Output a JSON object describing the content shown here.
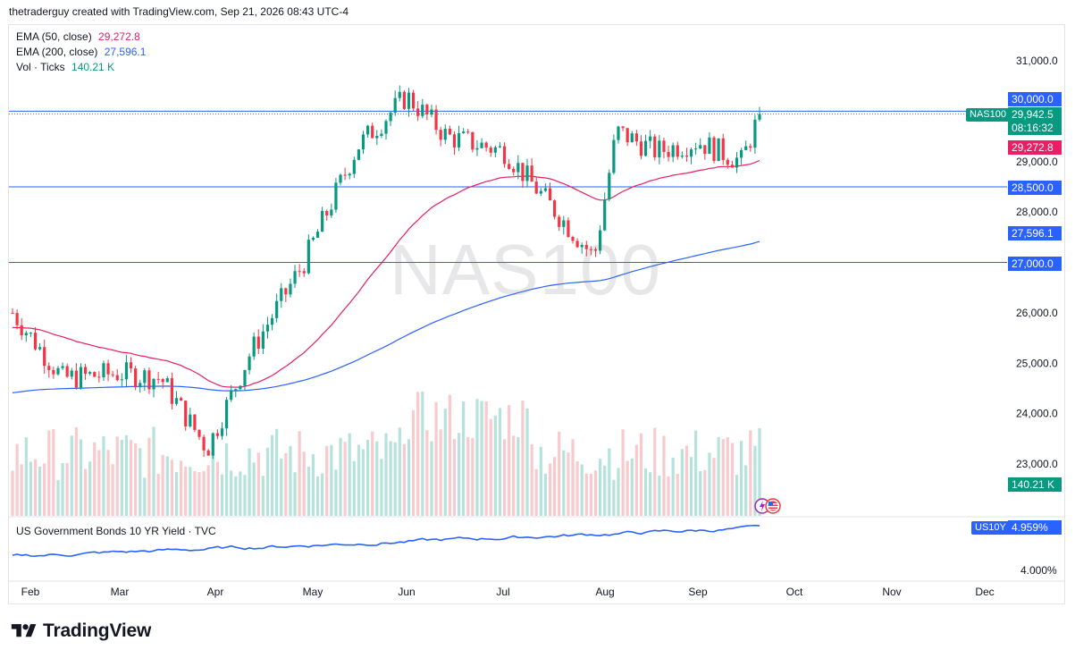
{
  "header": {
    "text": "thetraderguy created with TradingView.com, Sep 21, 2026 08:43 UTC-4"
  },
  "watermark": "NAS100",
  "legend": {
    "ema50": {
      "label": "EMA (50, close)",
      "value": "29,272.8",
      "color": "#e91e63"
    },
    "ema200": {
      "label": "EMA (200, close)",
      "value": "27,596.1",
      "color": "#2962ff"
    },
    "vol": {
      "label": "Vol · Ticks",
      "value": "140.21 K",
      "color": "#089981"
    }
  },
  "price_tags": {
    "line30000": {
      "text": "30,000.0",
      "color": "#2962ff"
    },
    "symbol": {
      "text": "NAS100",
      "color": "#089981"
    },
    "last": {
      "text": "29,942.5",
      "color": "#089981"
    },
    "countdown": {
      "text": "08:16:32",
      "color": "#089981"
    },
    "ema50": {
      "text": "29,272.8",
      "color": "#e91e63"
    },
    "line28500": {
      "text": "28,500.0",
      "color": "#2962ff"
    },
    "ema200": {
      "text": "27,596.1",
      "color": "#2962ff"
    },
    "line27000": {
      "text": "27,000.0",
      "color": "#2962ff"
    },
    "volume": {
      "text": "140.21 K",
      "color": "#089981"
    },
    "us10y_symbol": {
      "text": "US10Y",
      "color": "#2962ff"
    },
    "us10y_value": {
      "text": "4.959%",
      "color": "#2962ff"
    }
  },
  "pane2": {
    "title": "US Government Bonds 10 YR Yield · TVC",
    "tick": "4.000%"
  },
  "footer": {
    "brand": "TradingView"
  },
  "chart_data": {
    "type": "candlestick",
    "symbol": "NAS100",
    "price_axis": {
      "ticks": [
        "31,000.0",
        "29,000.0",
        "28,000.0",
        "26,000.0",
        "25,000.0",
        "24,000.0",
        "23,000.0"
      ],
      "range": [
        22000,
        31400
      ]
    },
    "time_axis": {
      "ticks": [
        "Feb",
        "Mar",
        "Apr",
        "May",
        "Jun",
        "Jul",
        "Aug",
        "Sep",
        "Oct",
        "Nov",
        "Dec"
      ]
    },
    "horizontal_lines": [
      30000,
      28500,
      27000
    ],
    "last_price": 29942.5,
    "close_series": {
      "months": [
        "Feb",
        "Mar",
        "Apr",
        "May",
        "Jun",
        "Jul",
        "Aug",
        "Sep"
      ],
      "closes_keypoints": [
        [
          "Feb",
          26000
        ],
        [
          "Feb-mid",
          24700
        ],
        [
          "Mar",
          24800
        ],
        [
          "Mar-mid",
          24700
        ],
        [
          "Apr",
          23300
        ],
        [
          "Apr-mid",
          25200
        ],
        [
          "May",
          27000
        ],
        [
          "May-mid",
          29300
        ],
        [
          "Jun",
          30300
        ],
        [
          "Jun-mid",
          29500
        ],
        [
          "Jul",
          29200
        ],
        [
          "Jul-end",
          27100
        ],
        [
          "Aug",
          29600
        ],
        [
          "Aug-mid",
          29200
        ],
        [
          "Sep",
          29400
        ],
        [
          "Sep-mid",
          29000
        ],
        [
          "Sep-21",
          29942.5
        ]
      ]
    },
    "ema50": {
      "last": 29272.8
    },
    "ema200": {
      "last": 27596.1
    },
    "volume": {
      "last": "140.21 K"
    },
    "us10y": {
      "last": 4.959,
      "tick_labels": [
        "4.000%"
      ]
    }
  }
}
